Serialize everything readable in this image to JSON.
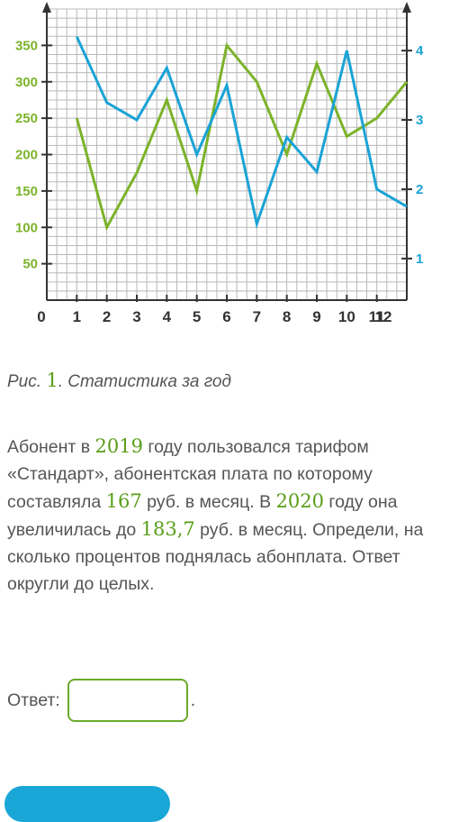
{
  "chart_data": {
    "type": "line",
    "x": [
      1,
      2,
      3,
      4,
      5,
      6,
      7,
      8,
      9,
      10,
      11,
      12
    ],
    "x_ticks": [
      "0",
      "1",
      "2",
      "3",
      "4",
      "5",
      "6",
      "7",
      "8",
      "9",
      "10",
      "11",
      "12"
    ],
    "xlim": [
      0,
      12
    ],
    "y_left": {
      "ticks": [
        "50",
        "100",
        "150",
        "200",
        "250",
        "300",
        "350"
      ],
      "range": [
        0,
        400
      ],
      "color": "#7cb32a"
    },
    "y_right": {
      "ticks": [
        "1",
        "2",
        "3",
        "4"
      ],
      "range": [
        0.4,
        4.6
      ],
      "color": "#1aa3d6"
    },
    "grid": true,
    "series": [
      {
        "axis": "left",
        "color": "#7cb32a",
        "values": [
          250,
          100,
          175,
          275,
          150,
          350,
          300,
          200,
          325,
          225,
          250,
          300
        ]
      },
      {
        "axis": "right",
        "color": "#1aa3d6",
        "values": [
          4.2,
          3.25,
          3.0,
          3.75,
          2.5,
          3.5,
          1.5,
          2.75,
          2.25,
          4.0,
          2.0,
          1.75
        ]
      }
    ]
  },
  "caption": {
    "prefix": "Рис. ",
    "number": "1",
    "suffix": ". Статистика за год"
  },
  "problem": {
    "t1": "Абонент в ",
    "n1": "2019",
    "t2": " году пользовался тарифом «Стандарт», абонентская плата по которому составляла ",
    "n2": "167",
    "t3": " руб. в месяц. В ",
    "n3": "2020",
    "t4": " году она увеличилась до ",
    "n4": "183,7",
    "t5": " руб. в месяц. Определи, на сколько процентов поднялась абонплата. Ответ округли до целых."
  },
  "answer": {
    "label": "Ответ:",
    "value": "",
    "suffix": "."
  }
}
